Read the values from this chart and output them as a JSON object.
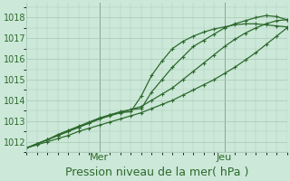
{
  "background_color": "#cce8d8",
  "grid_color": "#a8c8b8",
  "line_color": "#2d6a2d",
  "title": "Pression niveau de la mer( hPa )",
  "ylim": [
    1011.5,
    1018.7
  ],
  "xlim": [
    0,
    100
  ],
  "yticks": [
    1012,
    1013,
    1014,
    1015,
    1016,
    1017,
    1018
  ],
  "day_labels": [
    [
      "Mer",
      28
    ],
    [
      "Jeu",
      76
    ]
  ],
  "lines": [
    [
      0,
      1011.7,
      4,
      1011.85,
      8,
      1012.0,
      12,
      1012.15,
      16,
      1012.3,
      20,
      1012.5,
      24,
      1012.65,
      28,
      1012.8,
      32,
      1012.95,
      36,
      1013.1,
      40,
      1013.25,
      44,
      1013.4,
      48,
      1013.6,
      52,
      1013.8,
      56,
      1014.0,
      60,
      1014.25,
      64,
      1014.5,
      68,
      1014.75,
      72,
      1015.0,
      76,
      1015.3,
      80,
      1015.6,
      84,
      1015.95,
      88,
      1016.3,
      92,
      1016.7,
      96,
      1017.1,
      100,
      1017.5
    ],
    [
      0,
      1011.7,
      4,
      1011.9,
      8,
      1012.1,
      12,
      1012.3,
      16,
      1012.5,
      20,
      1012.7,
      24,
      1012.9,
      28,
      1013.1,
      32,
      1013.3,
      36,
      1013.45,
      40,
      1013.55,
      44,
      1013.6,
      48,
      1014.4,
      52,
      1015.0,
      56,
      1015.6,
      60,
      1016.1,
      64,
      1016.6,
      68,
      1016.9,
      72,
      1017.2,
      76,
      1017.5,
      80,
      1017.7,
      84,
      1017.85,
      88,
      1018.0,
      92,
      1018.1,
      96,
      1018.05,
      100,
      1017.9
    ],
    [
      0,
      1011.7,
      4,
      1011.9,
      8,
      1012.1,
      12,
      1012.35,
      16,
      1012.55,
      20,
      1012.75,
      24,
      1012.95,
      28,
      1013.15,
      32,
      1013.3,
      36,
      1013.4,
      40,
      1013.45,
      44,
      1014.2,
      48,
      1015.2,
      52,
      1015.9,
      56,
      1016.5,
      60,
      1016.85,
      64,
      1017.1,
      68,
      1017.3,
      72,
      1017.45,
      76,
      1017.55,
      80,
      1017.65,
      84,
      1017.7,
      88,
      1017.7,
      92,
      1017.65,
      96,
      1017.6,
      100,
      1017.55
    ],
    [
      0,
      1011.7,
      4,
      1011.9,
      8,
      1012.1,
      12,
      1012.3,
      16,
      1012.5,
      20,
      1012.7,
      24,
      1012.9,
      28,
      1013.1,
      32,
      1013.25,
      36,
      1013.4,
      40,
      1013.55,
      44,
      1013.7,
      48,
      1014.0,
      52,
      1014.3,
      56,
      1014.6,
      60,
      1015.0,
      64,
      1015.4,
      68,
      1015.8,
      72,
      1016.2,
      76,
      1016.6,
      80,
      1016.95,
      84,
      1017.25,
      88,
      1017.5,
      92,
      1017.7,
      96,
      1017.85,
      100,
      1017.9
    ]
  ],
  "title_fontsize": 9,
  "tick_fontsize": 7,
  "day_label_fontsize": 8
}
